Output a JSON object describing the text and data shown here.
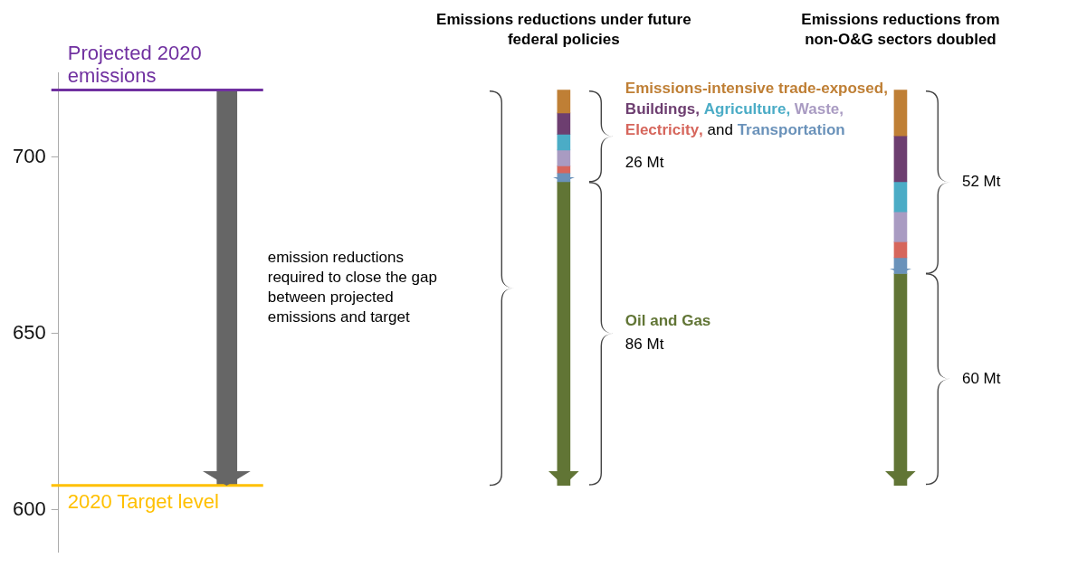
{
  "chart_data": {
    "type": "bar",
    "categories": [
      null,
      "Emissions reductions under future federal policies",
      "Emissions reductions from non-O&G sectors doubled"
    ],
    "series": [
      {
        "color": "#666666",
        "values": [
          -112,
          null,
          null
        ],
        "base": [
          719,
          null,
          null
        ]
      },
      {
        "name": "Emissions-intensive trade-exposed",
        "color": "#bf7f35",
        "values": [
          null,
          -6.5,
          -13
        ],
        "base": [
          null,
          719,
          719
        ]
      },
      {
        "name": "Buildings",
        "color": "#6d3e70",
        "values": [
          null,
          -6,
          -13
        ],
        "base": [
          null,
          712.5,
          706
        ]
      },
      {
        "name": "Agriculture",
        "color": "#4bacc6",
        "values": [
          null,
          -4.5,
          -8.5
        ],
        "base": [
          null,
          706.5,
          693
        ]
      },
      {
        "name": "Waste",
        "color": "#a99bc2",
        "values": [
          null,
          -4.5,
          -8.5
        ],
        "base": [
          null,
          702,
          684.5
        ]
      },
      {
        "name": "Electricity",
        "color": "#d6665c",
        "values": [
          null,
          -2,
          -4.5
        ],
        "base": [
          null,
          697.5,
          676
        ]
      },
      {
        "name": "Transportation",
        "color": "#6a92ba",
        "values": [
          null,
          -2.5,
          -4.5
        ],
        "base": [
          null,
          695.5,
          671.5
        ]
      },
      {
        "name": "Oil and Gas",
        "color": "#617535",
        "values": [
          null,
          -86,
          -60
        ],
        "base": [
          null,
          693,
          667
        ]
      }
    ],
    "ylim": [
      588,
      724
    ],
    "yticks": [
      600,
      650,
      700
    ],
    "grid": false,
    "ref_lines": [
      {
        "axis": "y",
        "value": 719,
        "label": "Projected 2020 emissions",
        "color": "#7030a0"
      },
      {
        "axis": "y",
        "value": 607,
        "label": "2020 Target level",
        "color": "#ffc000"
      }
    ],
    "annotations": [
      ",",
      "and",
      "emission reductions required to close the gap between projected emissions and target",
      "26 Mt",
      "86 Mt",
      "52 Mt",
      "60 Mt"
    ]
  }
}
